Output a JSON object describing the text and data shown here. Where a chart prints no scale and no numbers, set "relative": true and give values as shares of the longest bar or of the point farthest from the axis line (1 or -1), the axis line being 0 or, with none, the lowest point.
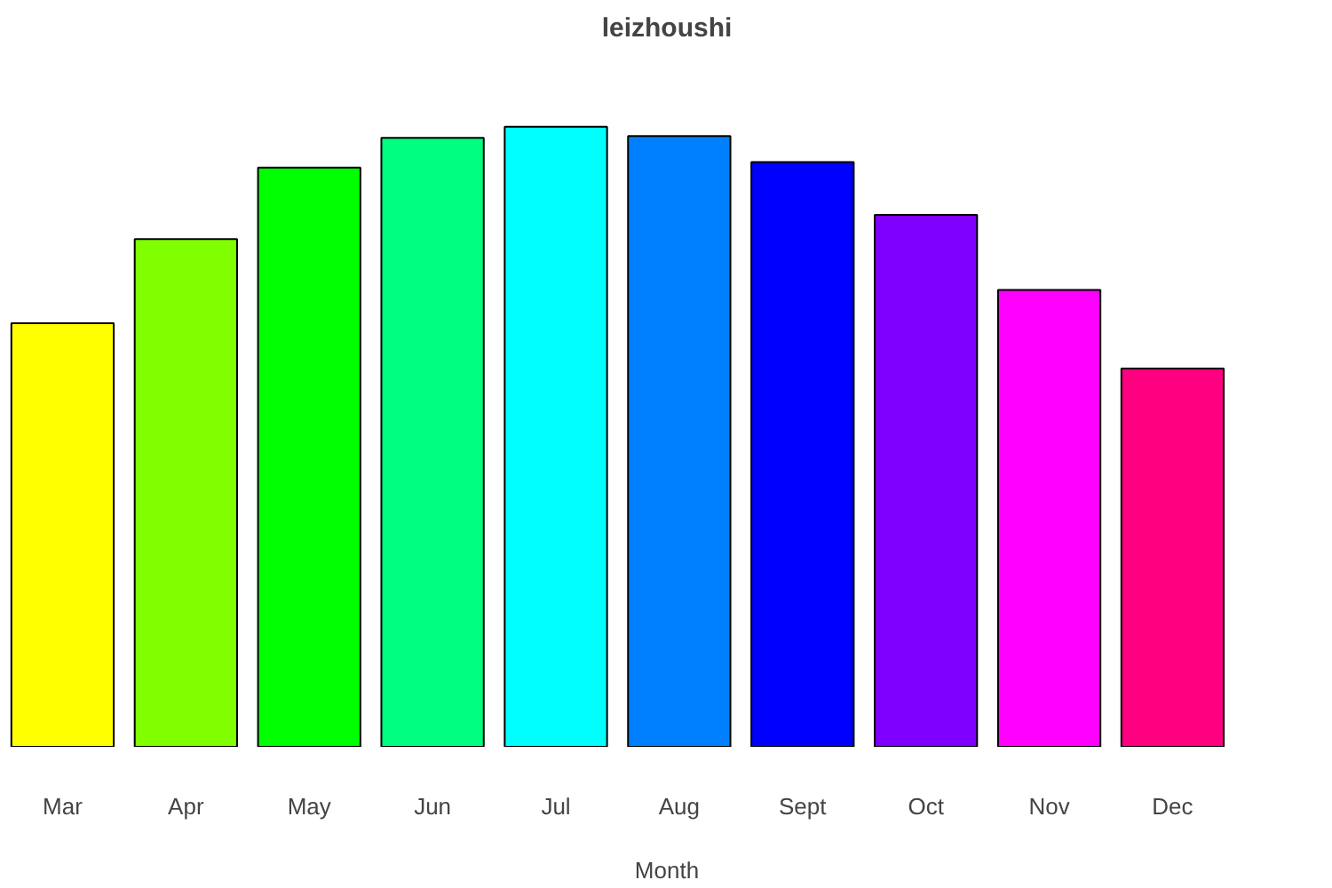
{
  "chart_data": {
    "type": "bar",
    "title": "leizhoushi",
    "xlabel": "Month",
    "relative": true,
    "categories": [
      "Mar",
      "Apr",
      "May",
      "Jun",
      "Jul",
      "Aug",
      "Sept",
      "Oct",
      "Nov",
      "Dec"
    ],
    "values": [
      0.683,
      0.819,
      0.934,
      0.982,
      1,
      0.985,
      0.943,
      0.858,
      0.737,
      0.61
    ],
    "colors": [
      "#ffff00",
      "#80ff00",
      "#00ff00",
      "#00ff80",
      "#00ffff",
      "#0080ff",
      "#0000ff",
      "#8000ff",
      "#ff00ff",
      "#ff0080"
    ],
    "grid": false
  }
}
